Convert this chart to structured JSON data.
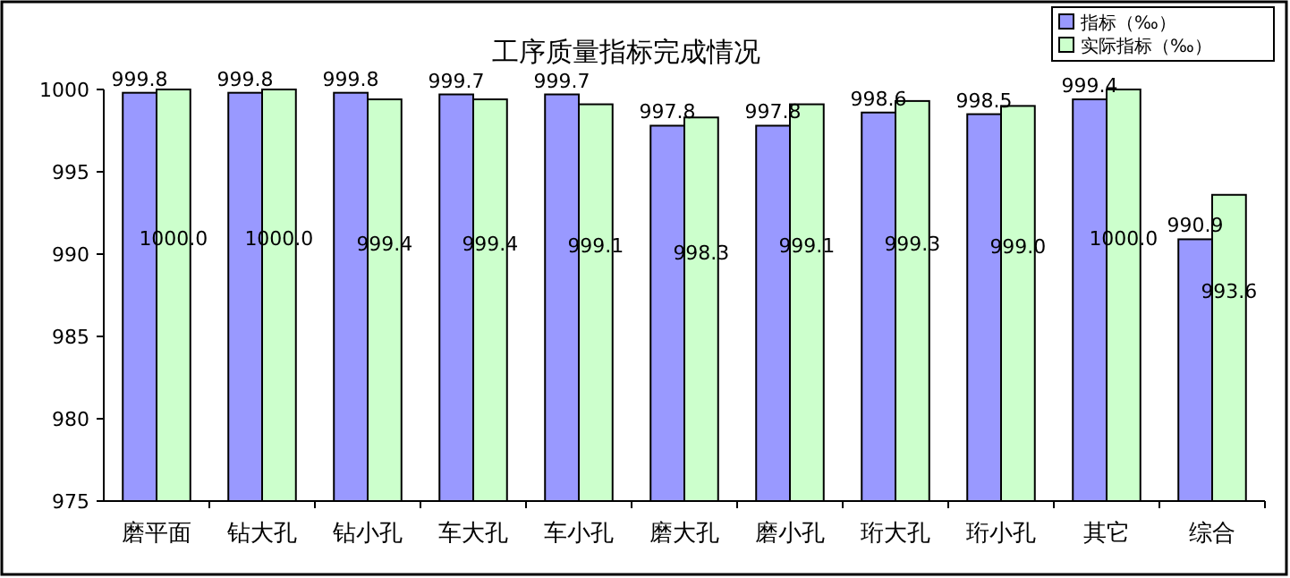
{
  "chart_data": {
    "type": "bar",
    "title": "工序质量指标完成情况",
    "categories": [
      "磨平面",
      "钻大孔",
      "钻小孔",
      "车大孔",
      "车小孔",
      "磨大孔",
      "磨小孔",
      "珩大孔",
      "珩小孔",
      "其它",
      "综合"
    ],
    "series": [
      {
        "name": "指标（‰）",
        "color": "#9999ff",
        "values": [
          999.8,
          999.8,
          999.8,
          999.7,
          999.7,
          997.8,
          997.8,
          998.6,
          998.5,
          999.4,
          990.9
        ],
        "value_labels": [
          "999.8",
          "999.8",
          "999.8",
          "999.7",
          "999.7",
          "997.8",
          "997.8",
          "998.6",
          "998.5",
          "999.4",
          "990.9"
        ]
      },
      {
        "name": "实际指标（‰）",
        "color": "#ccffcc",
        "values": [
          1000.0,
          1000.0,
          999.4,
          999.4,
          999.1,
          998.3,
          999.1,
          999.3,
          999.0,
          1000.0,
          993.6
        ],
        "value_labels": [
          "1000.0",
          "1000.0",
          "999.4",
          "999.4",
          "999.1",
          "998.3",
          "999.1",
          "999.3",
          "999.0",
          "1000.0",
          "993.6"
        ]
      }
    ],
    "ylim": [
      975,
      1000
    ],
    "yticks": [
      975,
      980,
      985,
      990,
      995,
      1000
    ],
    "grid": false,
    "legend": "top right"
  }
}
